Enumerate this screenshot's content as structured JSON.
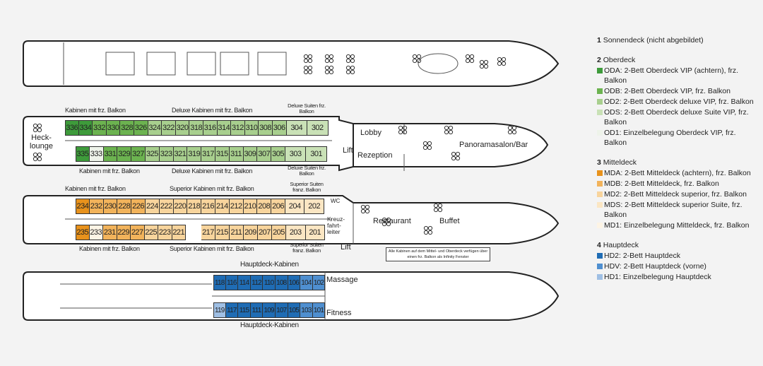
{
  "colors": {
    "ODA": "#3e9b3b",
    "ODB": "#6cb350",
    "OD2": "#a8cf8e",
    "ODS": "#c9e1b6",
    "OD1": "#eef3ea",
    "MDA": "#e8921c",
    "MDB": "#f2b35b",
    "MD2": "#f8d49c",
    "MDS": "#fbe6c3",
    "MD1": "#fdf4e5",
    "HD2": "#1f6cb4",
    "HDV": "#4f8fd0",
    "HD1": "#9fbfe4"
  },
  "oberdeck": {
    "top": [
      [
        "336",
        "ODA"
      ],
      [
        "334",
        "ODA"
      ],
      [
        "332",
        "ODB"
      ],
      [
        "330",
        "ODB"
      ],
      [
        "328",
        "ODB"
      ],
      [
        "326",
        "ODB"
      ],
      [
        "324",
        "OD2"
      ],
      [
        "322",
        "OD2"
      ],
      [
        "320",
        "OD2"
      ],
      [
        "318",
        "OD2"
      ],
      [
        "316",
        "OD2"
      ],
      [
        "314",
        "OD2"
      ],
      [
        "312",
        "OD2"
      ],
      [
        "310",
        "OD2"
      ],
      [
        "308",
        "OD2"
      ],
      [
        "306",
        "OD2"
      ],
      [
        "304",
        "ODS"
      ],
      [
        "302",
        "ODS"
      ]
    ],
    "bottom": [
      [
        "335",
        "ODA"
      ],
      [
        "333",
        "OD1"
      ],
      [
        "331",
        "ODB"
      ],
      [
        "329",
        "ODB"
      ],
      [
        "327",
        "ODB"
      ],
      [
        "325",
        "OD2"
      ],
      [
        "323",
        "OD2"
      ],
      [
        "321",
        "OD2"
      ],
      [
        "319",
        "OD2"
      ],
      [
        "317",
        "OD2"
      ],
      [
        "315",
        "OD2"
      ],
      [
        "311",
        "OD2"
      ],
      [
        "309",
        "OD2"
      ],
      [
        "307",
        "OD2"
      ],
      [
        "305",
        "OD2"
      ],
      [
        "303",
        "ODS"
      ],
      [
        "301",
        "ODS"
      ]
    ],
    "labels": {
      "balkon": "Kabinen mit frz. Balkon",
      "deluxe": "Deluxe Kabinen mit frz. Balkon",
      "suiten": "Deluxe Suiten frz. Balkon"
    },
    "rooms": {
      "lounge": "Heck-\nlounge",
      "lift": "Lift",
      "lobby": "Lobby",
      "rezeption": "Rezeption",
      "salon": "Panoramasalon/Bar"
    }
  },
  "mitteldeck": {
    "top": [
      [
        "234",
        "MDA"
      ],
      [
        "232",
        "MDB"
      ],
      [
        "230",
        "MDB"
      ],
      [
        "228",
        "MDB"
      ],
      [
        "226",
        "MDB"
      ],
      [
        "224",
        "MD2"
      ],
      [
        "222",
        "MD2"
      ],
      [
        "220",
        "MD2"
      ],
      [
        "218",
        "MD2"
      ],
      [
        "216",
        "MD2"
      ],
      [
        "214",
        "MD2"
      ],
      [
        "212",
        "MD2"
      ],
      [
        "210",
        "MD2"
      ],
      [
        "208",
        "MD2"
      ],
      [
        "206",
        "MD2"
      ],
      [
        "204",
        "MDS"
      ],
      [
        "202",
        "MDS"
      ]
    ],
    "bottom": [
      [
        "235",
        "MDA"
      ],
      [
        "233",
        "MD1"
      ],
      [
        "231",
        "MDB"
      ],
      [
        "229",
        "MDB"
      ],
      [
        "227",
        "MDB"
      ],
      [
        "225",
        "MD2"
      ],
      [
        "223",
        "MD2"
      ],
      [
        "221",
        "MD2"
      ],
      [
        "",
        ""
      ],
      [
        "217",
        "MD2"
      ],
      [
        "215",
        "MD2"
      ],
      [
        "211",
        "MD2"
      ],
      [
        "209",
        "MD2"
      ],
      [
        "207",
        "MD2"
      ],
      [
        "205",
        "MD2"
      ],
      [
        "203",
        "MDS"
      ],
      [
        "201",
        "MDS"
      ]
    ],
    "labels": {
      "balkon": "Kabinen mit frz. Balkon",
      "superior": "Superior Kabinen mit frz. Balkon",
      "suiten": "Superior Suiten franz. Balkon"
    },
    "rooms": {
      "wc": "WC",
      "kreuz": "Kreuz-\nfahrt-\nleiter",
      "lift": "Lift",
      "restaurant": "Restaurant",
      "buffet": "Buffet"
    }
  },
  "hauptdeck": {
    "top": [
      [
        "118",
        "HD2"
      ],
      [
        "116",
        "HD2"
      ],
      [
        "114",
        "HD2"
      ],
      [
        "112",
        "HD2"
      ],
      [
        "110",
        "HD2"
      ],
      [
        "108",
        "HD2"
      ],
      [
        "106",
        "HD2"
      ],
      [
        "104",
        "HDV"
      ],
      [
        "102",
        "HDV"
      ]
    ],
    "bottom": [
      [
        "119",
        "HD1"
      ],
      [
        "117",
        "HD2"
      ],
      [
        "115",
        "HD2"
      ],
      [
        "111",
        "HD2"
      ],
      [
        "109",
        "HD2"
      ],
      [
        "107",
        "HD2"
      ],
      [
        "105",
        "HD2"
      ],
      [
        "103",
        "HDV"
      ],
      [
        "101",
        "HDV"
      ]
    ],
    "label": "Hauptdeck-Kabinen",
    "rooms": {
      "massage": "Massage",
      "fitness": "Fitness"
    }
  },
  "note": "Alle Kabinen auf dem Mittel- und Oberdeck verfügen über einen frz. Balkon als Infinity Fenster",
  "legend": [
    {
      "num": "1",
      "title": "Sonnendeck (nicht abgebildet)",
      "items": []
    },
    {
      "num": "2",
      "title": "Oberdeck",
      "items": [
        {
          "code": "ODA",
          "text": "ODA: 2-Bett Oberdeck VIP (achtern), frz. Balkon"
        },
        {
          "code": "ODB",
          "text": "ODB: 2-Bett Oberdeck VIP, frz. Balkon"
        },
        {
          "code": "OD2",
          "text": "OD2: 2-Bett Oberdeck deluxe VIP, frz. Balkon"
        },
        {
          "code": "ODS",
          "text": "ODS: 2-Bett Oberdeck deluxe Suite VIP, frz. Balkon"
        },
        {
          "code": "OD1",
          "text": "OD1: Einzelbelegung Oberdeck VIP, frz. Balkon"
        }
      ]
    },
    {
      "num": "3",
      "title": "Mitteldeck",
      "items": [
        {
          "code": "MDA",
          "text": "MDA: 2-Bett Mitteldeck (achtern), frz. Balkon"
        },
        {
          "code": "MDB",
          "text": "MDB: 2-Bett Mitteldeck, frz. Balkon"
        },
        {
          "code": "MD2",
          "text": "MD2: 2-Bett Mitteldeck superior, frz. Balkon"
        },
        {
          "code": "MDS",
          "text": "MDS: 2-Bett Mitteldeck superior Suite, frz. Balkon"
        },
        {
          "code": "MD1",
          "text": "MD1: Einzelbelegung Mitteldeck, frz. Balkon"
        }
      ]
    },
    {
      "num": "4",
      "title": "Hauptdeck",
      "items": [
        {
          "code": "HD2",
          "text": "HD2: 2-Bett Hauptdeck"
        },
        {
          "code": "HDV",
          "text": "HDV: 2-Bett Hauptdeck (vorne)"
        },
        {
          "code": "HD1",
          "text": "HD1: Einzelbelegung Hauptdeck"
        }
      ]
    }
  ]
}
